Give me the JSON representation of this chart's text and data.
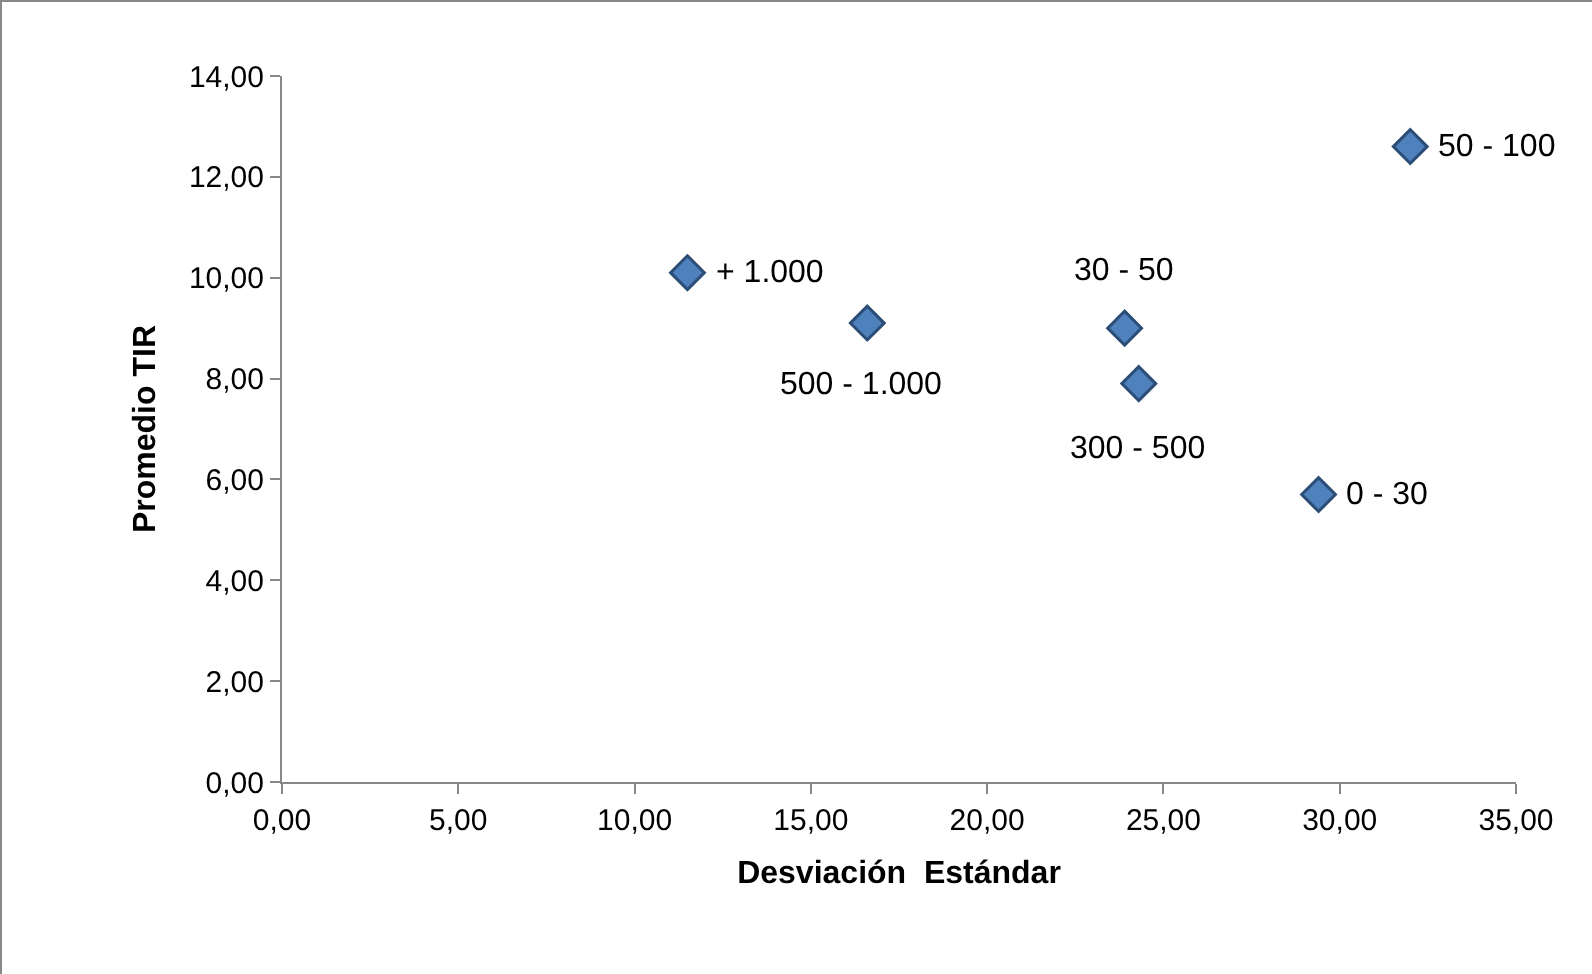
{
  "chart_data": {
    "type": "scatter",
    "xlabel": "Desviación  Estándar",
    "ylabel": "Promedio TIR",
    "x": [
      11.5,
      16.6,
      23.9,
      24.3,
      29.4,
      32.0
    ],
    "values": [
      10.1,
      9.1,
      9.0,
      7.9,
      5.7,
      12.6
    ],
    "color": "#4f81bd",
    "marker": "diamond",
    "xlim": [
      0,
      35
    ],
    "xticks": [
      {
        "value": 0,
        "label": "0,00"
      },
      {
        "value": 5,
        "label": "5,00"
      },
      {
        "value": 10,
        "label": "10,00"
      },
      {
        "value": 15,
        "label": "15,00"
      },
      {
        "value": 20,
        "label": "20,00"
      },
      {
        "value": 25,
        "label": "25,00"
      },
      {
        "value": 30,
        "label": "30,00"
      },
      {
        "value": 35,
        "label": "35,00"
      }
    ],
    "ylim": [
      0,
      14
    ],
    "yticks": [
      {
        "value": 0,
        "label": "0,00"
      },
      {
        "value": 2,
        "label": "2,00"
      },
      {
        "value": 4,
        "label": "4,00"
      },
      {
        "value": 6,
        "label": "6,00"
      },
      {
        "value": 8,
        "label": "8,00"
      },
      {
        "value": 10,
        "label": "10,00"
      },
      {
        "value": 12,
        "label": "12,00"
      },
      {
        "value": 14,
        "label": "14,00"
      }
    ],
    "annotations": [
      {
        "text": "+ 1.000",
        "x": 11.5,
        "y": 10.1
      },
      {
        "text": "500 - 1.000",
        "x": 16.6,
        "y": 9.1
      },
      {
        "text": "30 - 50",
        "x": 23.9,
        "y": 9.0
      },
      {
        "text": "300 - 500",
        "x": 24.3,
        "y": 7.9
      },
      {
        "text": "0 - 30",
        "x": 29.4,
        "y": 5.7
      },
      {
        "text": "50 - 100",
        "x": 32.0,
        "y": 12.6
      }
    ]
  }
}
